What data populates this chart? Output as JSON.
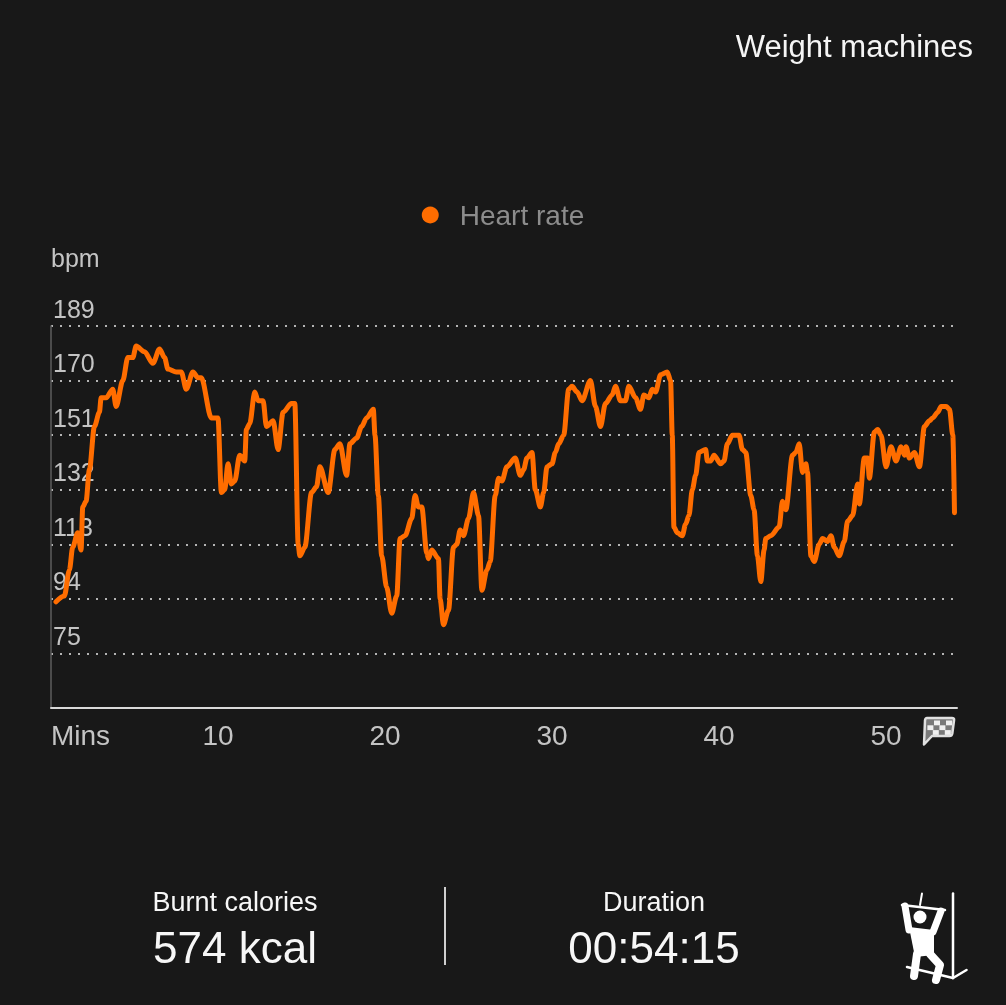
{
  "chart_data": [
    {
      "type": "line",
      "title": "Weight machines",
      "xlabel": "Mins",
      "ylabel": "bpm",
      "x": [
        0.3,
        0.8,
        1.1,
        1.3,
        1.6,
        1.8,
        1.9,
        2.1,
        2.3,
        2.6,
        2.9,
        3.0,
        3.3,
        3.7,
        3.9,
        4.3,
        4.6,
        4.9,
        5.1,
        5.6,
        6.1,
        6.5,
        6.8,
        7.0,
        7.5,
        7.8,
        8.1,
        8.5,
        8.8,
        9.0,
        9.6,
        10.0,
        10.2,
        10.4,
        10.6,
        10.8,
        11.0,
        11.3,
        11.6,
        11.7,
        11.9,
        12.2,
        12.4,
        12.7,
        12.9,
        13.3,
        13.6,
        13.9,
        14.4,
        14.6,
        14.8,
        14.9,
        15.2,
        15.6,
        15.9,
        16.1,
        16.6,
        17.0,
        17.3,
        17.7,
        17.9,
        18.3,
        18.6,
        18.9,
        19.3,
        19.4,
        19.6,
        19.8,
        20.1,
        20.4,
        20.7,
        20.9,
        21.2,
        21.6,
        21.8,
        22.0,
        22.2,
        22.5,
        22.6,
        22.8,
        23.2,
        23.3,
        23.5,
        23.8,
        24.1,
        24.3,
        24.5,
        24.7,
        25.0,
        25.3,
        25.6,
        25.8,
        26.1,
        26.3,
        26.6,
        26.8,
        27.0,
        27.3,
        27.8,
        28.1,
        28.3,
        28.5,
        28.8,
        29.0,
        29.3,
        29.5,
        29.7,
        30.0,
        30.2,
        30.4,
        30.7,
        31.0,
        31.2,
        31.5,
        31.8,
        32.3,
        32.6,
        32.9,
        33.2,
        33.6,
        33.8,
        34.1,
        34.4,
        34.6,
        35.0,
        35.3,
        35.5,
        35.8,
        36.0,
        36.2,
        36.5,
        36.9,
        37.1,
        37.2,
        37.3,
        37.5,
        37.8,
        38.0,
        38.2,
        38.4,
        38.6,
        38.8,
        39.2,
        39.3,
        39.5,
        39.7,
        40.1,
        40.3,
        40.5,
        40.8,
        41.2,
        41.4,
        41.6,
        41.9,
        42.1,
        42.3,
        42.5,
        42.7,
        42.8,
        43.1,
        43.6,
        43.8,
        44.0,
        44.4,
        44.6,
        44.8,
        45.0,
        45.2,
        45.3,
        45.5,
        45.7,
        46.0,
        46.2,
        46.5,
        46.7,
        46.9,
        47.2,
        47.5,
        47.7,
        48.0,
        48.3,
        48.4,
        48.7,
        48.9,
        49.0,
        49.3,
        49.5,
        49.7,
        50.0,
        50.3,
        50.6,
        50.9,
        51.1,
        51.2,
        51.4,
        51.7,
        52.0,
        52.3,
        52.6,
        52.8,
        53.1,
        53.3,
        53.6,
        53.8,
        54.0,
        54.1
      ],
      "series": [
        {
          "name": "Heart rate",
          "color": "#ff6d00",
          "values": [
            93,
            95,
            104,
            112,
            117,
            111,
            126,
            128,
            139,
            154,
            159,
            164,
            164,
            167,
            161,
            170,
            178,
            178,
            182,
            180,
            176,
            181,
            178,
            174,
            173,
            173,
            167,
            173,
            171,
            171,
            157,
            157,
            131,
            132,
            141,
            134,
            135,
            144,
            142,
            153,
            155,
            166,
            163,
            163,
            154,
            156,
            146,
            159,
            162,
            162,
            113,
            109,
            112,
            131,
            133,
            140,
            131,
            146,
            148,
            137,
            148,
            150,
            154,
            157,
            160,
            151,
            130,
            109,
            98,
            89,
            95,
            115,
            116,
            122,
            130,
            126,
            126,
            110,
            108,
            111,
            108,
            94,
            85,
            90,
            112,
            113,
            118,
            116,
            122,
            131,
            123,
            97,
            104,
            107,
            130,
            136,
            135,
            140,
            143,
            137,
            139,
            143,
            145,
            132,
            126,
            131,
            140,
            141,
            145,
            148,
            151,
            167,
            168,
            166,
            163,
            170,
            161,
            154,
            162,
            165,
            168,
            163,
            163,
            168,
            164,
            160,
            165,
            164,
            167,
            166,
            172,
            173,
            170,
            151,
            119,
            117,
            116,
            120,
            123,
            132,
            137,
            145,
            146,
            142,
            142,
            144,
            141,
            142,
            148,
            151,
            151,
            146,
            145,
            130,
            125,
            109,
            100,
            111,
            115,
            116,
            119,
            128,
            125,
            144,
            145,
            148,
            138,
            141,
            138,
            109,
            107,
            113,
            115,
            114,
            116,
            112,
            109,
            114,
            121,
            123,
            134,
            127,
            143,
            143,
            136,
            152,
            153,
            151,
            140,
            147,
            142,
            147,
            144,
            147,
            143,
            145,
            140,
            154,
            156,
            157,
            159,
            161,
            161,
            160,
            151,
            124
          ]
        }
      ],
      "xlim": [
        0,
        54.25
      ],
      "xticks": [
        10,
        20,
        30,
        40,
        50
      ],
      "ylim": [
        56,
        189
      ],
      "yticks": [
        {
          "value": 56,
          "label": null
        },
        75,
        94,
        113,
        132,
        151,
        170,
        189
      ],
      "grid": "y",
      "legend": "top"
    },
    {
      "type": "other",
      "annotations": [
        "Burnt calories",
        "574 kcal",
        "Duration",
        "00:54:15"
      ]
    }
  ]
}
